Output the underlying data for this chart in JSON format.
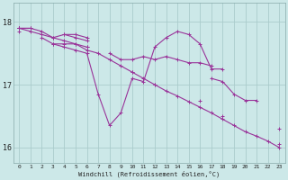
{
  "xlabel": "Windchill (Refroidissement éolien,°C)",
  "background_color": "#cce8e8",
  "grid_color": "#aacccc",
  "line_color": "#993399",
  "hours": [
    0,
    1,
    2,
    3,
    4,
    5,
    6,
    7,
    8,
    9,
    10,
    11,
    12,
    13,
    14,
    15,
    16,
    17,
    18,
    19,
    20,
    21,
    22,
    23
  ],
  "line_wavy": [
    null,
    null,
    null,
    null,
    null,
    null,
    null,
    null,
    null,
    null,
    null,
    null,
    null,
    null,
    null,
    null,
    null,
    null,
    null,
    null,
    null,
    null,
    null,
    null
  ],
  "lineA": [
    17.9,
    17.9,
    null,
    null,
    17.8,
    17.75,
    17.7,
    null,
    null,
    null,
    null,
    null,
    null,
    null,
    null,
    null,
    null,
    null,
    null,
    null,
    null,
    null,
    null,
    null
  ],
  "lineB_wavy": [
    17.85,
    null,
    null,
    17.65,
    17.6,
    17.55,
    17.5,
    16.85,
    16.35,
    16.55,
    17.1,
    17.05,
    17.6,
    17.75,
    17.85,
    17.8,
    17.65,
    17.25,
    17.25,
    null,
    null,
    null,
    null,
    null
  ],
  "lineC_upper": [
    17.9,
    17.9,
    17.85,
    17.75,
    17.8,
    17.8,
    17.75,
    null,
    null,
    null,
    null,
    null,
    null,
    null,
    null,
    null,
    null,
    null,
    null,
    null,
    null,
    null,
    null,
    null
  ],
  "lineD_flat1": [
    17.9,
    null,
    17.75,
    17.65,
    17.65,
    17.65,
    17.6,
    null,
    17.5,
    17.4,
    17.4,
    17.45,
    17.4,
    17.45,
    17.4,
    17.35,
    17.35,
    17.3,
    null,
    null,
    null,
    null,
    null,
    null
  ],
  "lineE_diag1": [
    17.9,
    null,
    null,
    null,
    null,
    null,
    17.6,
    null,
    null,
    null,
    17.2,
    null,
    17.0,
    null,
    null,
    null,
    16.75,
    null,
    16.5,
    null,
    null,
    null,
    null,
    16.05
  ],
  "lineF_diag2": [
    17.9,
    17.85,
    17.8,
    17.75,
    17.7,
    17.65,
    17.55,
    17.5,
    17.4,
    17.3,
    17.2,
    17.1,
    17.0,
    16.9,
    16.82,
    16.73,
    16.64,
    16.55,
    16.45,
    16.35,
    16.25,
    16.18,
    16.1,
    16.0
  ],
  "lineG_lower": [
    null,
    null,
    null,
    null,
    null,
    null,
    null,
    null,
    null,
    null,
    null,
    null,
    null,
    null,
    null,
    null,
    null,
    17.1,
    17.05,
    16.85,
    16.75,
    16.75,
    null,
    16.3
  ],
  "ylim": [
    15.75,
    18.3
  ],
  "yticks": [
    16,
    17,
    18
  ],
  "xticks": [
    0,
    1,
    2,
    3,
    4,
    5,
    6,
    7,
    8,
    9,
    10,
    11,
    12,
    13,
    14,
    15,
    16,
    17,
    18,
    19,
    20,
    21,
    22,
    23
  ]
}
